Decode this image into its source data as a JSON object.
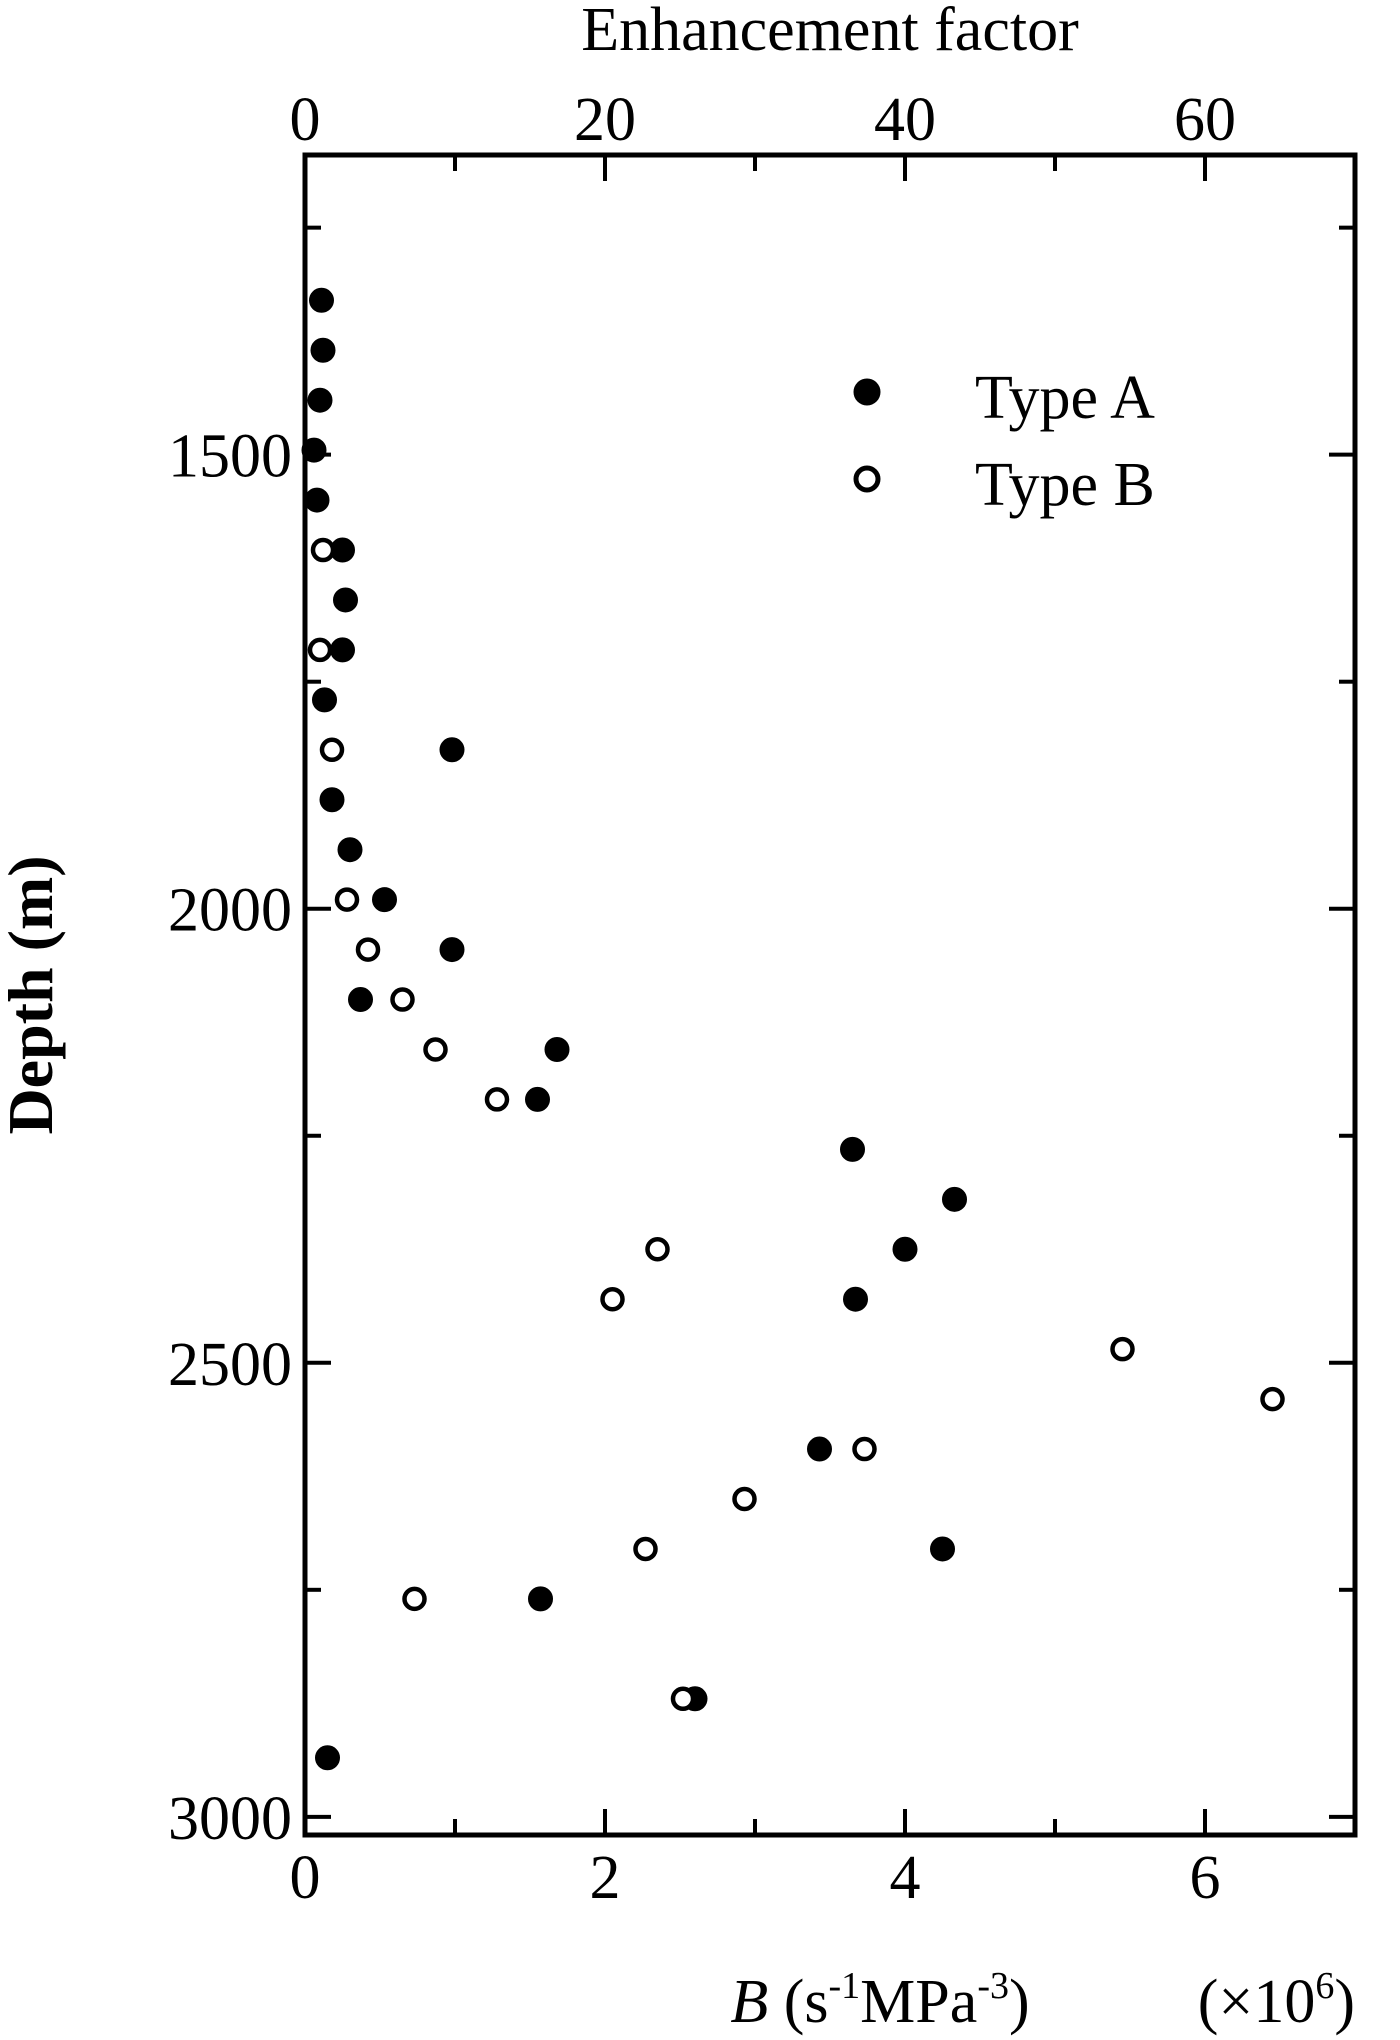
{
  "chart_data": {
    "type": "scatter",
    "x_bottom": {
      "label_italic": "B",
      "label_rest": " (s",
      "sup1": "-1",
      "mid": "MPa",
      "sup2": "-3",
      "end": ")",
      "multiplier_prefix": "(×10",
      "multiplier_sup": "6",
      "multiplier_suffix": ")",
      "range": [
        0,
        7
      ],
      "ticks": [
        0,
        2,
        4,
        6
      ],
      "tick_labels": [
        "0",
        "2",
        "4",
        "6"
      ]
    },
    "x_top": {
      "label": "Enhancement factor",
      "range": [
        0,
        70
      ],
      "ticks": [
        0,
        20,
        40,
        60
      ],
      "tick_labels": [
        "0",
        "20",
        "40",
        "60"
      ]
    },
    "y": {
      "label": "Depth (m)",
      "range": [
        1170,
        3020
      ],
      "inverted": true,
      "ticks": [
        1500,
        2000,
        2500,
        3000
      ],
      "tick_labels": [
        "1500",
        "2000",
        "2500",
        "3000"
      ]
    },
    "legend": {
      "position": "top-right",
      "entries": [
        "Type A",
        "Type B"
      ]
    },
    "series": [
      {
        "name": "Type A",
        "marker": "filled-circle",
        "points": [
          [
            0.11,
            1330
          ],
          [
            0.12,
            1385
          ],
          [
            0.1,
            1440
          ],
          [
            0.06,
            1495
          ],
          [
            0.08,
            1550
          ],
          [
            0.25,
            1605
          ],
          [
            0.27,
            1660
          ],
          [
            0.25,
            1715
          ],
          [
            0.13,
            1770
          ],
          [
            0.98,
            1825
          ],
          [
            0.18,
            1880
          ],
          [
            0.3,
            1935
          ],
          [
            0.53,
            1990
          ],
          [
            0.98,
            2045
          ],
          [
            0.37,
            2100
          ],
          [
            1.68,
            2155
          ],
          [
            1.55,
            2210
          ],
          [
            3.65,
            2265
          ],
          [
            4.33,
            2320
          ],
          [
            4.0,
            2375
          ],
          [
            3.67,
            2430
          ],
          [
            3.43,
            2595
          ],
          [
            4.25,
            2705
          ],
          [
            1.57,
            2760
          ],
          [
            2.6,
            2870
          ],
          [
            0.15,
            2935
          ]
        ]
      },
      {
        "name": "Type B",
        "marker": "open-circle",
        "points": [
          [
            0.12,
            1605
          ],
          [
            0.1,
            1715
          ],
          [
            0.18,
            1825
          ],
          [
            0.28,
            1990
          ],
          [
            0.42,
            2045
          ],
          [
            0.65,
            2100
          ],
          [
            0.87,
            2155
          ],
          [
            1.28,
            2210
          ],
          [
            2.35,
            2375
          ],
          [
            2.05,
            2430
          ],
          [
            5.45,
            2485
          ],
          [
            6.45,
            2540
          ],
          [
            3.73,
            2595
          ],
          [
            2.93,
            2650
          ],
          [
            2.27,
            2705
          ],
          [
            0.73,
            2760
          ],
          [
            2.52,
            2870
          ]
        ]
      }
    ]
  }
}
